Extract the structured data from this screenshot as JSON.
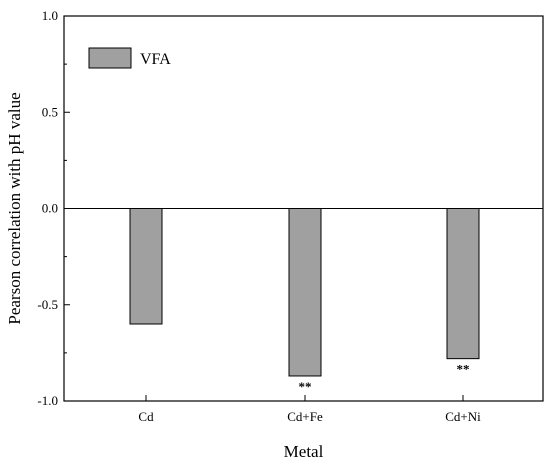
{
  "chart_data": {
    "type": "bar",
    "categories": [
      "Cd",
      "Cd+Fe",
      "Cd+Ni"
    ],
    "series": [
      {
        "name": "VFA",
        "values": [
          -0.6,
          -0.87,
          -0.78
        ],
        "color": "#a0a0a0"
      }
    ],
    "annotations": [
      "",
      "**",
      "**"
    ],
    "xlabel": "Metal",
    "ylabel": "Pearson correlation with pH value",
    "ylim": [
      -1.0,
      1.0
    ],
    "yticks": [
      -1.0,
      -0.5,
      0.0,
      0.5,
      1.0
    ],
    "ytick_labels": [
      "-1.0",
      "-0.5",
      "0.0",
      "0.5",
      "1.0"
    ],
    "grid": false,
    "legend_position": "top-left"
  }
}
